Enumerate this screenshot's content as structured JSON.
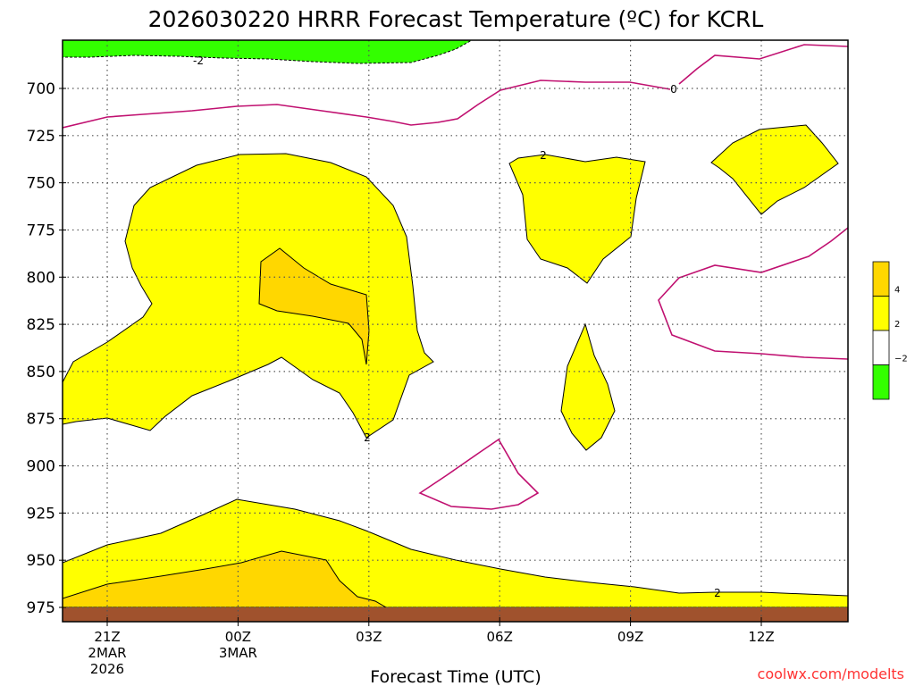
{
  "chart_data": {
    "type": "contour",
    "title": "2026030220 HRRR Forecast Temperature (ºC) for KCRL",
    "xlabel": "Forecast Time (UTC)",
    "ylabel": "",
    "y_axis": {
      "unit": "pressure",
      "inverted": true,
      "ticks": [
        700,
        725,
        750,
        775,
        800,
        825,
        850,
        875,
        900,
        925,
        950,
        975
      ]
    },
    "x_axis": {
      "ticks": [
        {
          "label": "21Z",
          "sub": [
            "2MAR",
            "2026"
          ]
        },
        {
          "label": "00Z",
          "sub": [
            "3MAR"
          ]
        },
        {
          "label": "03Z",
          "sub": []
        },
        {
          "label": "06Z",
          "sub": []
        },
        {
          "label": "09Z",
          "sub": []
        },
        {
          "label": "12Z",
          "sub": []
        }
      ]
    },
    "grid": true,
    "colorbar": {
      "placement": "right",
      "levels": [
        {
          "label": "4",
          "color": "#ffd700"
        },
        {
          "label": "2",
          "color": "#ffff00"
        },
        {
          "label": "",
          "color": "#ffffff"
        },
        {
          "label": "−2",
          "color": "#33ff00"
        }
      ],
      "tick_labels": [
        "4",
        "2",
        "−2"
      ]
    },
    "colors": {
      "warm_2_4": "#ffff00",
      "warm_4_6": "#ffd700",
      "cold_below_-2": "#33ff00",
      "zero_line": "#c01070",
      "ground": "#a0522d"
    },
    "contour_labels": [
      "-2",
      "0",
      "2",
      "2",
      "2",
      "2"
    ]
  },
  "credit": "coolwx.com/modelts"
}
